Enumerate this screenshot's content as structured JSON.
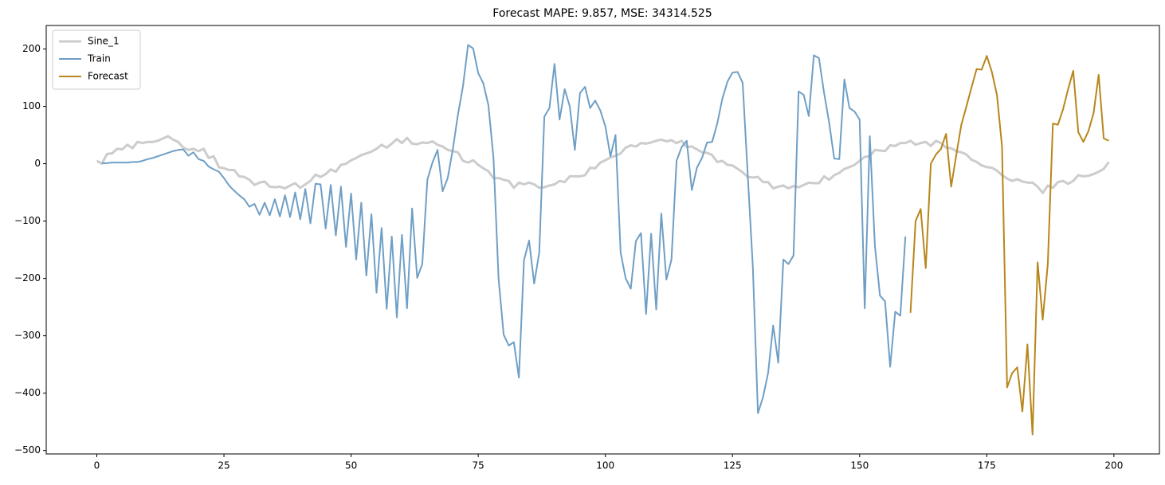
{
  "chart_data": {
    "type": "line",
    "title": "Forecast MAPE: 9.857, MSE: 34314.525",
    "x": [
      0,
      1,
      2,
      3,
      4,
      5,
      6,
      7,
      8,
      9,
      10,
      11,
      12,
      13,
      14,
      15,
      16,
      17,
      18,
      19,
      20,
      21,
      22,
      23,
      24,
      25,
      26,
      27,
      28,
      29,
      30,
      31,
      32,
      33,
      34,
      35,
      36,
      37,
      38,
      39,
      40,
      41,
      42,
      43,
      44,
      45,
      46,
      47,
      48,
      49,
      50,
      51,
      52,
      53,
      54,
      55,
      56,
      57,
      58,
      59,
      60,
      61,
      62,
      63,
      64,
      65,
      66,
      67,
      68,
      69,
      70,
      71,
      72,
      73,
      74,
      75,
      76,
      77,
      78,
      79,
      80,
      81,
      82,
      83,
      84,
      85,
      86,
      87,
      88,
      89,
      90,
      91,
      92,
      93,
      94,
      95,
      96,
      97,
      98,
      99,
      100,
      101,
      102,
      103,
      104,
      105,
      106,
      107,
      108,
      109,
      110,
      111,
      112,
      113,
      114,
      115,
      116,
      117,
      118,
      119,
      120,
      121,
      122,
      123,
      124,
      125,
      126,
      127,
      128,
      129,
      130,
      131,
      132,
      133,
      134,
      135,
      136,
      137,
      138,
      139,
      140,
      141,
      142,
      143,
      144,
      145,
      146,
      147,
      148,
      149,
      150,
      151,
      152,
      153,
      154,
      155,
      156,
      157,
      158,
      159,
      160,
      161,
      162,
      163,
      164,
      165,
      166,
      167,
      168,
      169,
      170,
      171,
      172,
      173,
      174,
      175,
      176,
      177,
      178,
      179,
      180,
      181,
      182,
      183,
      184,
      185,
      186,
      187,
      188,
      189,
      190,
      191,
      192,
      193,
      194,
      195,
      196,
      197,
      198,
      199
    ],
    "series": [
      {
        "name": "Sine_1",
        "color": "#cccccc",
        "width": 3,
        "values": [
          5,
          0,
          17,
          18,
          26,
          25,
          33,
          27,
          38,
          36,
          38,
          38,
          40,
          44,
          48,
          42,
          38,
          28,
          24,
          26,
          22,
          26,
          10,
          13,
          -6,
          -8,
          -11,
          -11,
          -22,
          -23,
          -28,
          -37,
          -33,
          -31,
          -40,
          -41,
          -40,
          -43,
          -38,
          -34,
          -42,
          -36,
          -30,
          -19,
          -23,
          -18,
          -10,
          -14,
          -2,
          0,
          6,
          10,
          15,
          18,
          21,
          26,
          33,
          28,
          35,
          43,
          36,
          45,
          35,
          34,
          37,
          36,
          39,
          33,
          30,
          24,
          22,
          20,
          5,
          2,
          6,
          -2,
          -8,
          -13,
          -25,
          -25,
          -28,
          -30,
          -42,
          -33,
          -36,
          -33,
          -36,
          -42,
          -41,
          -38,
          -36,
          -30,
          -32,
          -22,
          -22,
          -22,
          -20,
          -7,
          -8,
          2,
          6,
          11,
          14,
          18,
          28,
          32,
          30,
          36,
          35,
          37,
          40,
          42,
          39,
          41,
          36,
          40,
          29,
          30,
          25,
          20,
          19,
          15,
          3,
          5,
          -2,
          -3,
          -9,
          -15,
          -23,
          -24,
          -23,
          -32,
          -32,
          -43,
          -40,
          -38,
          -43,
          -39,
          -41,
          -37,
          -33,
          -34,
          -34,
          -22,
          -28,
          -20,
          -16,
          -9,
          -6,
          -2,
          5,
          12,
          13,
          24,
          23,
          22,
          32,
          31,
          36,
          36,
          40,
          33,
          36,
          38,
          31,
          40,
          36,
          28,
          27,
          22,
          20,
          16,
          7,
          3,
          -3,
          -6,
          -7,
          -12,
          -20,
          -26,
          -30,
          -27,
          -31,
          -33,
          -33,
          -40,
          -51,
          -38,
          -42,
          -32,
          -30,
          -35,
          -30,
          -20,
          -22,
          -21,
          -18,
          -14,
          -9,
          3
        ]
      },
      {
        "name": "Train",
        "color": "#6f9fc6",
        "width": 2,
        "values": [
          null,
          1,
          1,
          2,
          2,
          2,
          2,
          3,
          3,
          5,
          8,
          10,
          13,
          16,
          19,
          22,
          24,
          25,
          14,
          20,
          8,
          5,
          -5,
          -10,
          -14,
          -25,
          -38,
          -47,
          -55,
          -62,
          -75,
          -70,
          -89,
          -68,
          -90,
          -62,
          -92,
          -55,
          -93,
          -50,
          -97,
          -44,
          -104,
          -35,
          -36,
          -113,
          -37,
          -125,
          -40,
          -145,
          -52,
          -167,
          -68,
          -195,
          -88,
          -225,
          -112,
          -253,
          -127,
          -268,
          -124,
          -252,
          -78,
          -199,
          -175,
          -28,
          2,
          24,
          -48,
          -25,
          25,
          85,
          135,
          207,
          201,
          158,
          140,
          102,
          10,
          -200,
          -298,
          -317,
          -311,
          -373,
          -168,
          -134,
          -209,
          -155,
          82,
          97,
          174,
          77,
          130,
          100,
          24,
          123,
          134,
          97,
          110,
          93,
          65,
          13,
          50,
          -155,
          -200,
          -218,
          -135,
          -121,
          -262,
          -122,
          -254,
          -87,
          -202,
          -167,
          5,
          29,
          40,
          -46,
          -7,
          10,
          37,
          38,
          70,
          113,
          143,
          159,
          160,
          141,
          -20,
          -180,
          -435,
          -407,
          -365,
          -282,
          -347,
          -167,
          -175,
          -160,
          126,
          120,
          83,
          189,
          184,
          124,
          72,
          9,
          8,
          147,
          97,
          91,
          77,
          -252,
          48,
          -143,
          -230,
          -240,
          -354,
          -258,
          -265,
          -127,
          null,
          null,
          null,
          null,
          null,
          null,
          null,
          null,
          null,
          null,
          null,
          null,
          null,
          null,
          null,
          null,
          null,
          null,
          null,
          null,
          null,
          null,
          null,
          null,
          null,
          null,
          null,
          null,
          null,
          null,
          null,
          null,
          null,
          null,
          null,
          null,
          null,
          null,
          null,
          null
        ]
      },
      {
        "name": "Forecast",
        "color": "#b8861b",
        "width": 2,
        "values": [
          null,
          null,
          null,
          null,
          null,
          null,
          null,
          null,
          null,
          null,
          null,
          null,
          null,
          null,
          null,
          null,
          null,
          null,
          null,
          null,
          null,
          null,
          null,
          null,
          null,
          null,
          null,
          null,
          null,
          null,
          null,
          null,
          null,
          null,
          null,
          null,
          null,
          null,
          null,
          null,
          null,
          null,
          null,
          null,
          null,
          null,
          null,
          null,
          null,
          null,
          null,
          null,
          null,
          null,
          null,
          null,
          null,
          null,
          null,
          null,
          null,
          null,
          null,
          null,
          null,
          null,
          null,
          null,
          null,
          null,
          null,
          null,
          null,
          null,
          null,
          null,
          null,
          null,
          null,
          null,
          null,
          null,
          null,
          null,
          null,
          null,
          null,
          null,
          null,
          null,
          null,
          null,
          null,
          null,
          null,
          null,
          null,
          null,
          null,
          null,
          null,
          null,
          null,
          null,
          null,
          null,
          null,
          null,
          null,
          null,
          null,
          null,
          null,
          null,
          null,
          null,
          null,
          null,
          null,
          null,
          null,
          null,
          null,
          null,
          null,
          null,
          null,
          null,
          null,
          null,
          null,
          null,
          null,
          null,
          null,
          null,
          null,
          null,
          null,
          null,
          null,
          null,
          null,
          null,
          null,
          null,
          null,
          null,
          null,
          null,
          null,
          null,
          null,
          null,
          null,
          null,
          null,
          null,
          null,
          null,
          -260,
          -100,
          -79,
          -182,
          0,
          16,
          26,
          52,
          -40,
          15,
          68,
          100,
          133,
          165,
          164,
          188,
          160,
          120,
          30,
          -390,
          -365,
          -355,
          -432,
          -315,
          -472,
          -172,
          -272,
          -175,
          70,
          68,
          95,
          130,
          162,
          55,
          38,
          57,
          88,
          155,
          44,
          40
        ]
      }
    ],
    "xlim": [
      -9.95,
      208.95
    ],
    "ylim": [
      -506,
      241
    ],
    "xticks": [
      0,
      25,
      50,
      75,
      100,
      125,
      150,
      175,
      200
    ],
    "yticks": [
      {
        "value": -500,
        "label": "−500"
      },
      {
        "value": -400,
        "label": "−400"
      },
      {
        "value": -300,
        "label": "−300"
      },
      {
        "value": -200,
        "label": "−200"
      },
      {
        "value": -100,
        "label": "−100"
      },
      0,
      100,
      200
    ],
    "legend": "upper-left"
  }
}
